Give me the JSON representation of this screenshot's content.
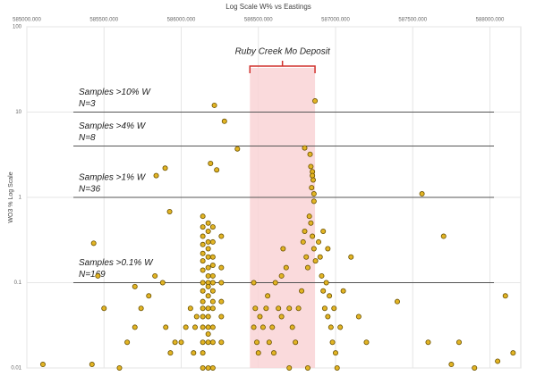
{
  "chart_data": {
    "type": "scatter",
    "title": "Log Scale W% vs Eastings",
    "y_label": "WO3 % Log Scale",
    "log_y": true,
    "grid": true,
    "point_color": "#e2b424",
    "point_edge": "#6b5200",
    "xlim": [
      585000,
      588200
    ],
    "xticks": [
      {
        "value": 585000,
        "label": "585000.000"
      },
      {
        "value": 585500,
        "label": "585500.000"
      },
      {
        "value": 586000,
        "label": "586000.000"
      },
      {
        "value": 586500,
        "label": "586500.000"
      },
      {
        "value": 587000,
        "label": "587000.000"
      },
      {
        "value": 587500,
        "label": "587500.000"
      },
      {
        "value": 588000,
        "label": "588000.000"
      }
    ],
    "ylim": [
      0.01,
      100
    ],
    "yticks": [
      0.01,
      0.1,
      1,
      10,
      100
    ],
    "deposit": {
      "label": "Ruby Creek Mo Deposit",
      "xmin": 586445,
      "xmax": 586867,
      "color": "#f9d3d6",
      "bracket_color": "#d0312d"
    },
    "thresholds": [
      {
        "value": 10,
        "label": "Samples >10% W",
        "count": "N=3"
      },
      {
        "value": 4,
        "label": "Samples >4% W",
        "count": "N=8"
      },
      {
        "value": 1,
        "label": "Samples >1% W",
        "count": "N=36"
      },
      {
        "value": 0.1,
        "label": "Samples >0.1% W",
        "count": "N=169"
      }
    ],
    "x": [
      586140,
      586140,
      586140,
      586140,
      586140,
      586140,
      586140,
      586140,
      586140,
      586140,
      586140,
      586140,
      586140,
      586140,
      586140,
      586140,
      586175,
      586175,
      586175,
      586175,
      586175,
      586175,
      586175,
      586175,
      586175,
      586175,
      586175,
      586175,
      586175,
      586175,
      586175,
      586175,
      586205,
      586205,
      586205,
      586205,
      586205,
      586205,
      586205,
      586205,
      586205,
      586205,
      586205,
      586205,
      586260,
      586260,
      586260,
      586260,
      586260,
      586260,
      586060,
      586030,
      586000,
      585960,
      585930,
      586090,
      585880,
      585830,
      585790,
      585740,
      585700,
      585650,
      585600,
      586100,
      586080,
      585900,
      586470,
      586480,
      586470,
      586490,
      586510,
      586530,
      586550,
      586570,
      586590,
      586610,
      586630,
      586650,
      586660,
      586680,
      586700,
      586720,
      586740,
      586760,
      586780,
      586790,
      586800,
      586810,
      586820,
      586830,
      586840,
      586850,
      586860,
      586870,
      586500,
      586600,
      586700,
      586820,
      586650,
      586560,
      586890,
      586900,
      586910,
      586920,
      586930,
      586940,
      586950,
      586960,
      586970,
      586980,
      586990,
      587000,
      587010,
      586920,
      586950,
      587030,
      587050,
      587100,
      587150,
      587200,
      587400,
      587600,
      587700,
      587560,
      587900,
      588100,
      588050,
      588150,
      587750,
      587800,
      585104,
      585422,
      585433,
      585460,
      585500,
      585700,
      586215,
      586280,
      586867,
      586800,
      586835,
      586840,
      586850,
      586855,
      586845,
      586860,
      586850,
      586860,
      585896,
      585838,
      586190,
      586230,
      586364,
      585925
    ],
    "values": [
      0.6,
      0.45,
      0.35,
      0.28,
      0.22,
      0.18,
      0.14,
      0.1,
      0.08,
      0.06,
      0.05,
      0.04,
      0.03,
      0.02,
      0.015,
      0.01,
      0.5,
      0.4,
      0.3,
      0.25,
      0.2,
      0.15,
      0.12,
      0.1,
      0.09,
      0.07,
      0.05,
      0.04,
      0.03,
      0.025,
      0.02,
      0.01,
      0.45,
      0.3,
      0.2,
      0.16,
      0.12,
      0.1,
      0.08,
      0.06,
      0.05,
      0.03,
      0.02,
      0.01,
      0.35,
      0.15,
      0.1,
      0.06,
      0.04,
      0.02,
      0.05,
      0.03,
      0.02,
      0.02,
      0.015,
      0.03,
      0.1,
      0.12,
      0.07,
      0.05,
      0.03,
      0.02,
      0.01,
      0.04,
      0.015,
      0.03,
      0.1,
      0.05,
      0.03,
      0.02,
      0.04,
      0.03,
      0.05,
      0.02,
      0.03,
      0.1,
      0.05,
      0.04,
      0.25,
      0.15,
      0.05,
      0.03,
      0.02,
      0.05,
      0.08,
      0.3,
      0.4,
      0.2,
      0.15,
      0.6,
      0.5,
      0.35,
      0.25,
      0.18,
      0.015,
      0.015,
      0.01,
      0.01,
      0.12,
      0.07,
      0.3,
      0.2,
      0.12,
      0.08,
      0.05,
      0.1,
      0.04,
      0.07,
      0.03,
      0.02,
      0.05,
      0.015,
      0.01,
      0.4,
      0.25,
      0.03,
      0.08,
      0.2,
      0.04,
      0.02,
      0.06,
      0.02,
      0.35,
      1.1,
      0.01,
      0.07,
      0.012,
      0.015,
      0.011,
      0.02,
      0.011,
      0.011,
      0.29,
      0.12,
      0.05,
      0.09,
      12,
      7.8,
      13.5,
      3.8,
      3.2,
      2.3,
      2.0,
      1.6,
      1.3,
      1.1,
      1.8,
      0.9,
      2.2,
      1.8,
      2.5,
      2.1,
      3.7,
      0.68
    ]
  }
}
